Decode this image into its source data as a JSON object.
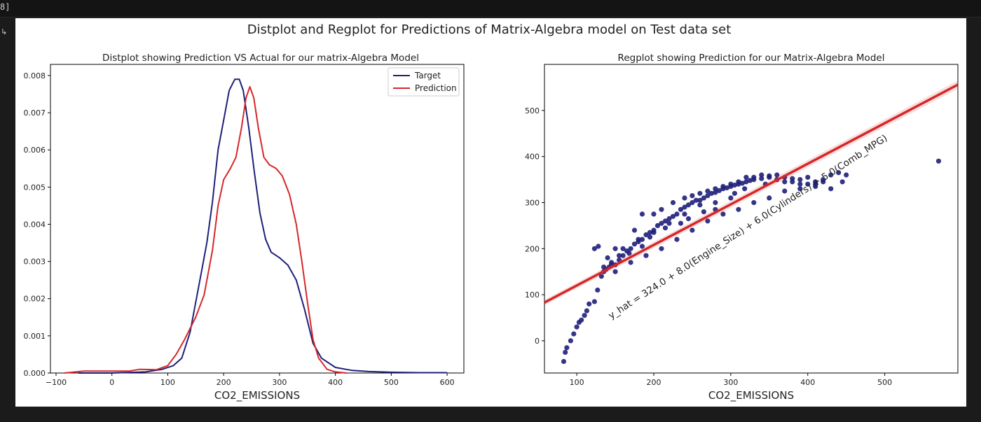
{
  "notebook": {
    "cell_prompt": "8]",
    "output_arrow_icon": "output-arrow-icon"
  },
  "figure": {
    "suptitle": "Distplot and Regplot for Predictions of Matrix-Algebra model on Test data set"
  },
  "chart_data": [
    {
      "type": "line",
      "title": "Distplot showing Prediction VS Actual for our matrix-Algebra Model",
      "xlabel": "CO2_EMISSIONS",
      "ylabel": "",
      "xlim": [
        -110,
        630
      ],
      "ylim": [
        0,
        0.0083
      ],
      "xticks": [
        -100,
        0,
        100,
        200,
        300,
        400,
        500,
        600
      ],
      "yticks": [
        0.0,
        0.001,
        0.002,
        0.003,
        0.004,
        0.005,
        0.006,
        0.007,
        0.008
      ],
      "legend_position": "top-right",
      "grid": false,
      "series": [
        {
          "name": "Target",
          "color": "#1f1f7a",
          "points": [
            [
              -60,
              0.0
            ],
            [
              0,
              0.0
            ],
            [
              60,
              3e-05
            ],
            [
              90,
              0.0001
            ],
            [
              110,
              0.0002
            ],
            [
              125,
              0.0004
            ],
            [
              140,
              0.0011
            ],
            [
              150,
              0.0019
            ],
            [
              160,
              0.0027
            ],
            [
              170,
              0.0035
            ],
            [
              180,
              0.0046
            ],
            [
              190,
              0.006
            ],
            [
              200,
              0.0068
            ],
            [
              210,
              0.0076
            ],
            [
              220,
              0.0079
            ],
            [
              228,
              0.0079
            ],
            [
              235,
              0.0076
            ],
            [
              245,
              0.0066
            ],
            [
              255,
              0.0054
            ],
            [
              265,
              0.0043
            ],
            [
              275,
              0.0036
            ],
            [
              285,
              0.00325
            ],
            [
              300,
              0.0031
            ],
            [
              315,
              0.0029
            ],
            [
              330,
              0.0025
            ],
            [
              345,
              0.0017
            ],
            [
              360,
              0.0008
            ],
            [
              375,
              0.0004
            ],
            [
              400,
              0.00015
            ],
            [
              430,
              7e-05
            ],
            [
              460,
              4e-05
            ],
            [
              500,
              2e-05
            ],
            [
              550,
              1e-05
            ],
            [
              600,
              1e-05
            ]
          ]
        },
        {
          "name": "Prediction",
          "color": "#d62728",
          "points": [
            [
              -85,
              0.0
            ],
            [
              -50,
              5e-05
            ],
            [
              0,
              5e-05
            ],
            [
              30,
              5e-05
            ],
            [
              50,
              0.0001
            ],
            [
              80,
              9e-05
            ],
            [
              100,
              0.0002
            ],
            [
              115,
              0.0005
            ],
            [
              130,
              0.0009
            ],
            [
              150,
              0.0015
            ],
            [
              165,
              0.0021
            ],
            [
              180,
              0.0033
            ],
            [
              190,
              0.0045
            ],
            [
              200,
              0.0052
            ],
            [
              212,
              0.0055
            ],
            [
              222,
              0.0058
            ],
            [
              232,
              0.0066
            ],
            [
              240,
              0.0074
            ],
            [
              247,
              0.0077
            ],
            [
              254,
              0.0074
            ],
            [
              262,
              0.0066
            ],
            [
              272,
              0.0058
            ],
            [
              282,
              0.0056
            ],
            [
              294,
              0.0055
            ],
            [
              305,
              0.0053
            ],
            [
              318,
              0.0048
            ],
            [
              330,
              0.004
            ],
            [
              340,
              0.003
            ],
            [
              350,
              0.0019
            ],
            [
              360,
              0.0009
            ],
            [
              370,
              0.0004
            ],
            [
              385,
              0.0001
            ],
            [
              400,
              3e-05
            ],
            [
              420,
              0.0
            ]
          ]
        }
      ]
    },
    {
      "type": "scatter",
      "title": "Regplot showing Prediction for our Matrix-Algebra Model",
      "xlabel": "CO2_EMISSIONS",
      "ylabel": "",
      "xlim": [
        58,
        595
      ],
      "ylim": [
        -70,
        600
      ],
      "xticks": [
        100,
        200,
        300,
        400,
        500
      ],
      "yticks": [
        0,
        100,
        200,
        300,
        400,
        500
      ],
      "grid": false,
      "annotation": "y_hat = 324.0 + 8.0(Engine_Size) + 6.0(Cylinders) + 5.0(Comb_MPG)",
      "point_color": "#1f1f7a",
      "line_color": "#d62728",
      "regression_line": [
        [
          58,
          83
        ],
        [
          595,
          556
        ]
      ],
      "points": [
        [
          83,
          -45
        ],
        [
          85,
          -25
        ],
        [
          87,
          -15
        ],
        [
          92,
          0
        ],
        [
          96,
          15
        ],
        [
          100,
          30
        ],
        [
          103,
          40
        ],
        [
          106,
          45
        ],
        [
          110,
          55
        ],
        [
          113,
          65
        ],
        [
          116,
          80
        ],
        [
          123,
          85
        ],
        [
          127,
          110
        ],
        [
          132,
          140
        ],
        [
          135,
          150
        ],
        [
          138,
          155
        ],
        [
          142,
          160
        ],
        [
          145,
          170
        ],
        [
          150,
          165
        ],
        [
          155,
          175
        ],
        [
          160,
          185
        ],
        [
          165,
          195
        ],
        [
          170,
          200
        ],
        [
          175,
          210
        ],
        [
          180,
          215
        ],
        [
          185,
          220
        ],
        [
          190,
          230
        ],
        [
          195,
          235
        ],
        [
          200,
          240
        ],
        [
          205,
          250
        ],
        [
          210,
          255
        ],
        [
          215,
          260
        ],
        [
          220,
          265
        ],
        [
          225,
          270
        ],
        [
          230,
          275
        ],
        [
          235,
          285
        ],
        [
          240,
          290
        ],
        [
          245,
          295
        ],
        [
          250,
          300
        ],
        [
          255,
          305
        ],
        [
          260,
          305
        ],
        [
          265,
          310
        ],
        [
          270,
          315
        ],
        [
          275,
          320
        ],
        [
          280,
          322
        ],
        [
          285,
          326
        ],
        [
          290,
          330
        ],
        [
          295,
          332
        ],
        [
          300,
          335
        ],
        [
          305,
          338
        ],
        [
          310,
          340
        ],
        [
          315,
          342
        ],
        [
          320,
          345
        ],
        [
          325,
          348
        ],
        [
          330,
          350
        ],
        [
          340,
          352
        ],
        [
          350,
          355
        ],
        [
          360,
          350
        ],
        [
          370,
          345
        ],
        [
          380,
          345
        ],
        [
          390,
          340
        ],
        [
          400,
          340
        ],
        [
          410,
          340
        ],
        [
          420,
          345
        ],
        [
          430,
          360
        ],
        [
          440,
          365
        ],
        [
          450,
          360
        ],
        [
          570,
          390
        ],
        [
          123,
          200
        ],
        [
          128,
          205
        ],
        [
          150,
          200
        ],
        [
          175,
          240
        ],
        [
          185,
          275
        ],
        [
          200,
          275
        ],
        [
          210,
          285
        ],
        [
          225,
          300
        ],
        [
          240,
          310
        ],
        [
          250,
          315
        ],
        [
          260,
          320
        ],
        [
          270,
          325
        ],
        [
          280,
          330
        ],
        [
          290,
          335
        ],
        [
          300,
          340
        ],
        [
          310,
          345
        ],
        [
          320,
          355
        ],
        [
          330,
          355
        ],
        [
          340,
          360
        ],
        [
          350,
          358
        ],
        [
          360,
          360
        ],
        [
          370,
          355
        ],
        [
          380,
          352
        ],
        [
          390,
          350
        ],
        [
          400,
          355
        ],
        [
          410,
          345
        ],
        [
          420,
          350
        ],
        [
          300,
          310
        ],
        [
          280,
          300
        ],
        [
          260,
          295
        ],
        [
          240,
          275
        ],
        [
          220,
          255
        ],
        [
          200,
          235
        ],
        [
          180,
          220
        ],
        [
          160,
          200
        ],
        [
          140,
          180
        ],
        [
          150,
          150
        ],
        [
          170,
          170
        ],
        [
          190,
          185
        ],
        [
          210,
          200
        ],
        [
          230,
          220
        ],
        [
          250,
          240
        ],
        [
          270,
          260
        ],
        [
          290,
          275
        ],
        [
          310,
          285
        ],
        [
          330,
          300
        ],
        [
          350,
          310
        ],
        [
          370,
          325
        ],
        [
          390,
          330
        ],
        [
          410,
          335
        ],
        [
          430,
          330
        ],
        [
          445,
          345
        ],
        [
          305,
          320
        ],
        [
          318,
          330
        ],
        [
          345,
          340
        ],
        [
          280,
          285
        ],
        [
          265,
          280
        ],
        [
          245,
          265
        ],
        [
          235,
          255
        ],
        [
          215,
          245
        ],
        [
          195,
          225
        ],
        [
          185,
          205
        ],
        [
          168,
          190
        ],
        [
          155,
          185
        ],
        [
          145,
          165
        ],
        [
          135,
          160
        ]
      ]
    }
  ]
}
